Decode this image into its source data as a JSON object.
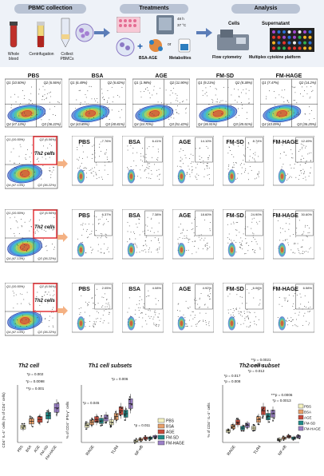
{
  "workflow": {
    "steps": [
      {
        "title": "PBMC collection",
        "labels": [
          "Whole blood",
          "Centrifugation",
          "Collect PBMCs"
        ]
      },
      {
        "title": "Treatments",
        "labels": [
          "BSA-AGE",
          "or",
          "Metabolites",
          "48 h",
          "37 °C"
        ]
      },
      {
        "title": "Analysis",
        "labels": [
          "Cells",
          "Supernatant",
          "Flow cytometry",
          "Multiplex cytokine platform"
        ]
      }
    ]
  },
  "row1": {
    "panels": [
      {
        "name": "PBS",
        "q1": "Q1 (10.50%)",
        "q2": "Q2 (6.56%)",
        "q4": "Q4 (47.13%)",
        "q3": "Q3 (36.22%)"
      },
      {
        "name": "BSA",
        "q1": "Q1 (6.49%)",
        "q2": "Q2 (6.82%)",
        "q4": "Q4 (43.89%)",
        "q3": "Q3 (40.81%)"
      },
      {
        "name": "AGE",
        "q1": "Q1 (1.98%)",
        "q2": "Q2 (11.90%)",
        "q4": "Q4 (34.70%)",
        "q3": "Q3 (51.42%)"
      },
      {
        "name": "FM-SD",
        "q1": "Q1 (9.21%)",
        "q2": "Q2 (8.38%)",
        "q4": "Q4 (36.91%)",
        "q3": "Q3 (45.51%)"
      },
      {
        "name": "FM-HAGE",
        "q1": "Q1 (7.47%)",
        "q2": "Q2 (14.2%)",
        "q4": "Q4 (43.09%)",
        "q3": "Q3 (36.25%)"
      }
    ]
  },
  "subsets": [
    {
      "gate": {
        "q1": "Q1 (10.50%)",
        "q2": "Q2 (6.56%)",
        "q4": "Q4 (47.13%)",
        "q3": "Q3 (36.22%)",
        "label": "Th2 cells"
      },
      "panels": [
        {
          "name": "PBS",
          "pct": "7.76%"
        },
        {
          "name": "BSA",
          "pct": "6.41%"
        },
        {
          "name": "AGE",
          "pct": "14.10%"
        },
        {
          "name": "FM-SD",
          "pct": "8.74%"
        },
        {
          "name": "FM-HAGE",
          "pct": "12.49%"
        }
      ]
    },
    {
      "gate": {
        "q1": "Q1 (10.50%)",
        "q2": "Q2 (6.56%)",
        "q4": "Q4 (47.13%)",
        "q3": "Q3 (36.22%)",
        "label": "Th2 cells"
      },
      "panels": [
        {
          "name": "PBS",
          "pct": "6.37%"
        },
        {
          "name": "BSA",
          "pct": "7.38%"
        },
        {
          "name": "AGE",
          "pct": "18.60%"
        },
        {
          "name": "FM-SD",
          "pct": "24.90%"
        },
        {
          "name": "FM-HAGE",
          "pct": "30.60%"
        }
      ]
    },
    {
      "gate": {
        "q1": "Q1 (10.50%)",
        "q2": "Q2 (6.56%)",
        "q4": "Q4 (47.13%)",
        "q3": "Q3 (36.22%)",
        "label": "Th2 cells"
      },
      "panels": [
        {
          "name": "PBS",
          "pct": "2.05%"
        },
        {
          "name": "BSA",
          "pct": "4.08%"
        },
        {
          "name": "AGE",
          "pct": "4.92%"
        },
        {
          "name": "FM-SD",
          "pct": "6.06%"
        },
        {
          "name": "FM-HAGE",
          "pct": "6.58%"
        }
      ]
    }
  ],
  "colors": {
    "PBS": "#f6f3c0",
    "BSA": "#e8a06a",
    "AGE": "#c94a3b",
    "FM-SD": "#1f8a88",
    "FM-HAGE": "#9b7fc7",
    "gate": "#e0262b",
    "arrow": "#f4b183"
  },
  "legend": [
    "PBS",
    "BSA",
    "AGE",
    "FM-SD",
    "FM-HAGE"
  ],
  "chart_data": [
    {
      "type": "box",
      "title": "Th2 cell",
      "ylabel": "CD4⁺ IL-4⁺ cells (% of CD4⁺ cells)",
      "categories": [
        "PBS",
        "BSA",
        "AGE",
        "FM-SD",
        "FM-HAGE"
      ],
      "series": [
        {
          "name": "PBS",
          "values": [
            4,
            6,
            8,
            9,
            10
          ]
        },
        {
          "name": "BSA",
          "values": [
            7,
            9,
            11,
            13,
            15
          ]
        },
        {
          "name": "AGE",
          "values": [
            8,
            10,
            12,
            14,
            16
          ]
        },
        {
          "name": "FM-SD",
          "values": [
            9,
            12,
            14,
            16,
            19
          ]
        },
        {
          "name": "FM-HAGE",
          "values": [
            11,
            14,
            18,
            21,
            24
          ]
        }
      ],
      "ylim": [
        0,
        30
      ],
      "annotations": [
        "*p = 0.002",
        "*p = 0.0098",
        "**p = 0.001"
      ]
    },
    {
      "type": "box",
      "title": "Th1 cell subsets",
      "ylabel": "% of CD4⁺ IFN-γ⁺ cells",
      "categories": [
        "RAGE",
        "TLR4",
        "NF-κB"
      ],
      "series": [
        {
          "name": "PBS",
          "values": [
            12,
            14,
            1
          ]
        },
        {
          "name": "BSA",
          "values": [
            14,
            18,
            2
          ]
        },
        {
          "name": "AGE",
          "values": [
            16,
            22,
            3
          ]
        },
        {
          "name": "FM-SD",
          "values": [
            15,
            20,
            3
          ]
        },
        {
          "name": "FM-HAGE",
          "values": [
            17,
            27,
            4
          ]
        }
      ],
      "ylim": [
        0,
        40
      ],
      "annotations": [
        "*p = 0.006",
        "*p = 0.045",
        "*p = 0.011"
      ]
    },
    {
      "type": "box",
      "title": "Th2 cell subset",
      "ylabel": "% of CD4⁺ IL-4⁺ cells",
      "categories": [
        "RAGE",
        "TLR4",
        "NF-κB"
      ],
      "series": [
        {
          "name": "PBS",
          "values": [
            8,
            10,
            2
          ]
        },
        {
          "name": "BSA",
          "values": [
            11,
            16,
            3
          ]
        },
        {
          "name": "AGE",
          "values": [
            14,
            22,
            4
          ]
        },
        {
          "name": "FM-SD",
          "values": [
            10,
            18,
            3
          ]
        },
        {
          "name": "FM-HAGE",
          "values": [
            12,
            20,
            4
          ]
        }
      ],
      "ylim": [
        0,
        40
      ],
      "annotations": [
        "**p = 0.0021",
        "*p = 0.014",
        "*p = 0.012",
        "*p = 0.017",
        "*p = 0.008",
        "***p = 0.0006",
        "*p = 0.0013"
      ]
    }
  ]
}
